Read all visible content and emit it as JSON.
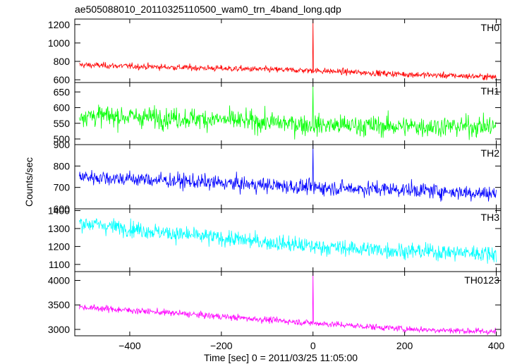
{
  "chart_data": {
    "type": "line",
    "title": "ae505088010_20110325110500_wam0_trn_4band_long.qdp",
    "xlabel": "Time [sec] 0 = 2011/03/25 11:05:00",
    "ylabel": "Counts/sec",
    "xlim": [
      -520,
      410
    ],
    "x_ticks": [
      -400,
      -200,
      0,
      200,
      400
    ],
    "x_tick_labels": [
      "−400",
      "−200",
      "0",
      "200",
      "400"
    ],
    "x_range": [
      -510,
      400
    ],
    "grid": false,
    "legend": "none",
    "panels": [
      {
        "name": "TH0",
        "color": "#ff0000",
        "ylim": [
          570,
          1260
        ],
        "y_ticks": [
          600,
          800,
          1000,
          1200
        ],
        "y_tick_labels": [
          "600",
          "800",
          "1000",
          "1200"
        ],
        "trend": [
          [
            -500,
            760
          ],
          [
            -300,
            735
          ],
          [
            0,
            700
          ],
          [
            200,
            660
          ],
          [
            400,
            630
          ]
        ],
        "noise": 28,
        "spike": {
          "x": 0,
          "y": 1260
        }
      },
      {
        "name": "TH1",
        "color": "#00ff00",
        "ylim": [
          482,
          680
        ],
        "y_ticks": [
          500,
          550,
          600,
          650
        ],
        "y_tick_labels": [
          "500",
          "550",
          "600",
          "650"
        ],
        "trend": [
          [
            -500,
            575
          ],
          [
            -250,
            565
          ],
          [
            0,
            545
          ],
          [
            200,
            540
          ],
          [
            400,
            540
          ]
        ],
        "noise": 28,
        "spike": {
          "x": 0,
          "y": 670
        }
      },
      {
        "name": "TH2",
        "color": "#0000ff",
        "ylim": [
          600,
          900
        ],
        "y_ticks": [
          600,
          700,
          800,
          900
        ],
        "y_tick_labels": [
          "600",
          "700",
          "800",
          "900"
        ],
        "trend": [
          [
            -500,
            750
          ],
          [
            -300,
            730
          ],
          [
            0,
            700
          ],
          [
            200,
            690
          ],
          [
            400,
            670
          ]
        ],
        "noise": 30,
        "spike": {
          "x": 0,
          "y": 900
        }
      },
      {
        "name": "TH3",
        "color": "#00ffff",
        "ylim": [
          1060,
          1410
        ],
        "y_ticks": [
          1100,
          1200,
          1300,
          1400
        ],
        "y_tick_labels": [
          "1100",
          "1200",
          "1300",
          "1400"
        ],
        "trend": [
          [
            -500,
            1330
          ],
          [
            -300,
            1270
          ],
          [
            0,
            1200
          ],
          [
            200,
            1175
          ],
          [
            400,
            1160
          ]
        ],
        "noise": 38,
        "spike": null
      },
      {
        "name": "TH0123",
        "color": "#ff00ff",
        "ylim": [
          2870,
          4180
        ],
        "y_ticks": [
          3000,
          3500,
          4000
        ],
        "y_tick_labels": [
          "3000",
          "3500",
          "4000"
        ],
        "trend": [
          [
            -500,
            3450
          ],
          [
            -300,
            3330
          ],
          [
            0,
            3130
          ],
          [
            200,
            3010
          ],
          [
            400,
            2950
          ]
        ],
        "noise": 55,
        "spike": {
          "x": 0,
          "y": 4180
        }
      }
    ]
  }
}
